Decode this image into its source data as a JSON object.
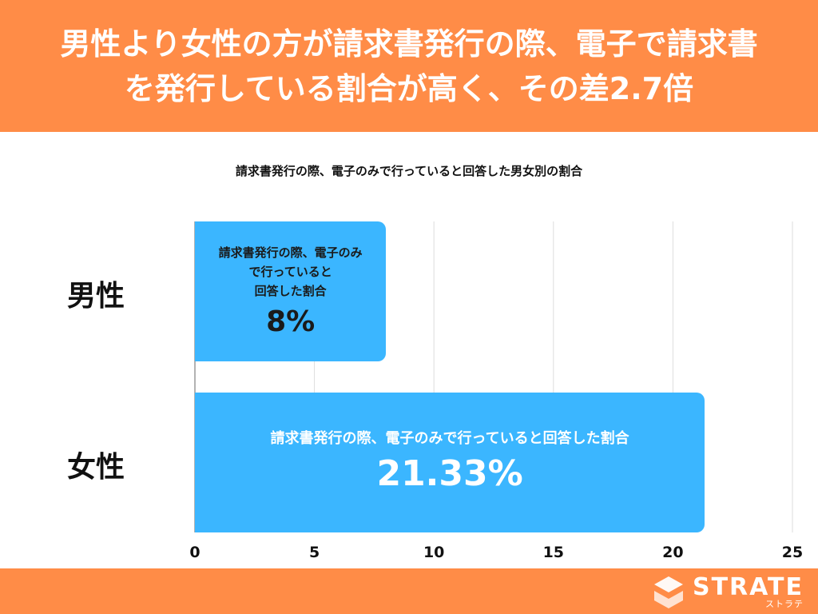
{
  "header": {
    "title_line1": "男性より女性の方が請求書発行の際、電子で請求書",
    "title_line2": "を発行している割合が高く、その差2.7倍"
  },
  "chart_data": {
    "type": "bar",
    "orientation": "horizontal",
    "subtitle": "請求書発行の際、電子のみで行っていると回答した男女別の割合",
    "categories": [
      "男性",
      "女性"
    ],
    "values": [
      8,
      21.33
    ],
    "value_labels": [
      "8%",
      "21.33%"
    ],
    "bar_labels": [
      [
        "請求書発行の際、電子のみ",
        "で行っていると",
        "回答した割合"
      ],
      [
        "請求書発行の際、電子のみで行っていると回答した割合"
      ]
    ],
    "xlim": [
      0,
      25
    ],
    "xticks": [
      "0",
      "5",
      "10",
      "15",
      "20",
      "25"
    ],
    "grid": true,
    "bar_color": "#3bb6ff",
    "accent_color": "#ff8c47"
  },
  "footer": {
    "brand": "STRATE",
    "brand_kana": "ストラテ"
  }
}
